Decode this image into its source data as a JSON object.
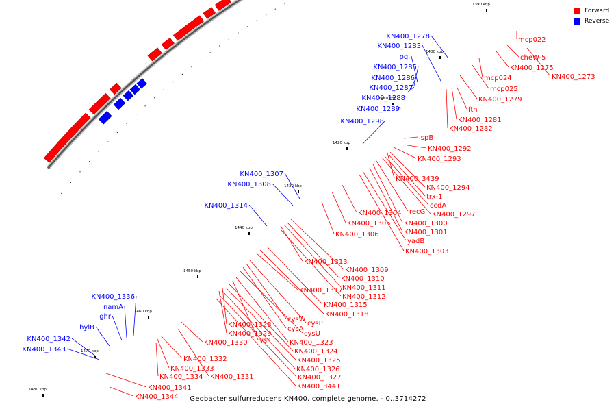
{
  "legend": {
    "forward_label": "Forward",
    "reverse_label": "Reverse",
    "forward_color": "#ff0000",
    "reverse_color": "#0000ff"
  },
  "caption": "Geobacter sulfurreducens KN400, complete genome. - 0..3714272",
  "ticks": [
    "1390 kbp",
    "1400 kbp",
    "1410 kbp",
    "1420 kbp",
    "1430 kbp",
    "1440 kbp",
    "1450 kbp",
    "1460 kbp",
    "1470 kbp",
    "1480 kbp"
  ],
  "forward_labels": [
    "mcp022",
    "cheW-5",
    "KN400_1275",
    "KN400_1273",
    "mcp024",
    "mcp025",
    "KN400_1279",
    "ftn",
    "KN400_1281",
    "KN400_1282",
    "ispB",
    "KN400_1292",
    "KN400_1293",
    "KN400_3439",
    "KN400_1294",
    "trx-1",
    "ccdA",
    "KN400_1297",
    "recG",
    "KN400_1304",
    "KN400_1300",
    "KN400_1305",
    "KN400_1301",
    "KN400_1306",
    "yadB",
    "KN400_1303",
    "KN400_1313",
    "KN400_1309",
    "KN400_1310",
    "KN400_1311",
    "KN400_1312",
    "KN400_1317",
    "KN400_1315",
    "KN400_1318",
    "cysW",
    "cysP",
    "cysA",
    "cysU",
    "KN400_1328",
    "KN400_1329",
    "vsr",
    "KN400_1323",
    "KN400_1330",
    "KN400_1324",
    "KN400_1325",
    "KN400_1332",
    "KN400_1326",
    "KN400_1333",
    "KN400_1334",
    "KN400_1331",
    "KN400_1327",
    "KN400_3441",
    "KN400_1341",
    "KN400_1344"
  ],
  "reverse_labels": [
    "KN400_1278",
    "KN400_1283",
    "pgi",
    "KN400_1285",
    "KN400_1286",
    "KN400_1287",
    "KN400_1288",
    "KN400_1289",
    "KN400_1298",
    "KN400_1307",
    "KN400_1308",
    "KN400_1314",
    "KN400_1336",
    "namA",
    "ghr",
    "hylB",
    "KN400_1342",
    "KN400_1343"
  ]
}
